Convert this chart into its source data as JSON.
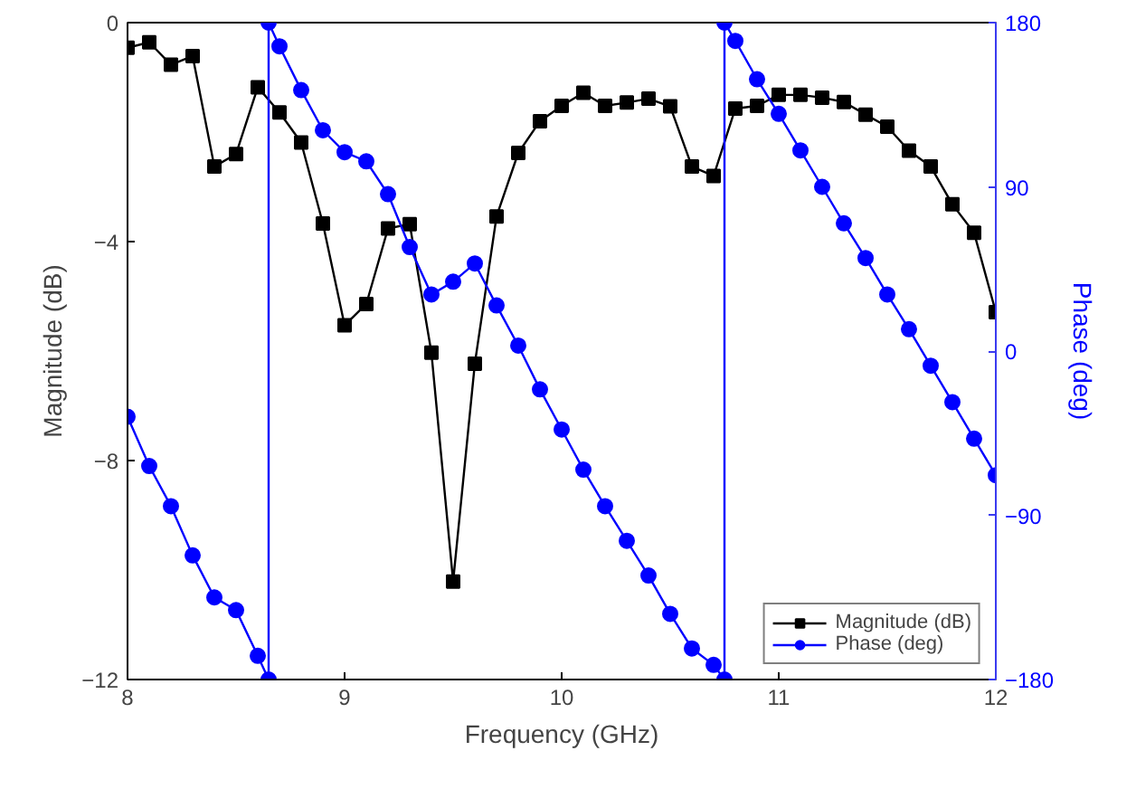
{
  "chart_data": {
    "type": "line",
    "xlabel": "Frequency (GHz)",
    "ylabel": "Magnitude (dB)",
    "y2label": "Phase (deg)",
    "xlim": [
      8,
      12
    ],
    "xticks": [
      8,
      9,
      10,
      11,
      12
    ],
    "ylim": [
      -12,
      0
    ],
    "yticks": [
      -12,
      -8,
      -4,
      0
    ],
    "y2lim": [
      -180,
      180
    ],
    "y2ticks": [
      -180,
      -90,
      0,
      90,
      180
    ],
    "grid": false,
    "legend": "bottom right",
    "series": [
      {
        "name": "Magnitude (dB)",
        "color": "#000000",
        "marker": "square",
        "x": [
          8.0,
          8.1,
          8.2,
          8.3,
          8.4,
          8.5,
          8.6,
          8.7,
          8.8,
          8.9,
          9.0,
          9.1,
          9.2,
          9.3,
          9.4,
          9.5,
          9.6,
          9.7,
          9.8,
          9.9,
          10.0,
          10.1,
          10.2,
          10.3,
          10.4,
          10.5,
          10.6,
          10.7,
          10.8,
          10.9,
          11.0,
          11.1,
          11.2,
          11.3,
          11.4,
          11.5,
          11.6,
          11.7,
          11.8,
          11.9,
          12.0
        ],
        "values": [
          -0.46,
          -0.36,
          -0.77,
          -0.61,
          -2.63,
          -2.4,
          -1.18,
          -1.64,
          -2.19,
          -3.67,
          -5.53,
          -5.14,
          -3.76,
          -3.68,
          -6.03,
          -10.21,
          -6.23,
          -3.54,
          -2.38,
          -1.8,
          -1.52,
          -1.28,
          -1.52,
          -1.46,
          -1.39,
          -1.53,
          -2.63,
          -2.8,
          -1.57,
          -1.52,
          -1.32,
          -1.32,
          -1.37,
          -1.45,
          -1.68,
          -1.9,
          -2.34,
          -2.63,
          -3.32,
          -3.84,
          -5.29
        ]
      },
      {
        "name": "Phase (deg)",
        "color": "#0000ff",
        "marker": "circle",
        "axis": "y2",
        "x": [
          8.0,
          8.1,
          8.2,
          8.3,
          8.4,
          8.5,
          8.6,
          8.65,
          8.65,
          8.7,
          8.8,
          8.9,
          9.0,
          9.1,
          9.2,
          9.3,
          9.4,
          9.5,
          9.6,
          9.7,
          9.8,
          9.9,
          10.0,
          10.1,
          10.2,
          10.3,
          10.4,
          10.5,
          10.6,
          10.7,
          10.75,
          10.75,
          10.8,
          10.9,
          11.0,
          11.1,
          11.2,
          11.3,
          11.4,
          11.5,
          11.6,
          11.7,
          11.8,
          11.9,
          12.0
        ],
        "values": [
          -36,
          -63,
          -85,
          -112,
          -135,
          -142,
          -167,
          -180,
          180,
          167,
          143,
          121,
          109,
          104,
          86,
          57,
          31,
          38,
          48,
          25,
          3,
          -21,
          -43,
          -65,
          -85,
          -104,
          -123,
          -144,
          -163,
          -172,
          -180,
          180,
          170,
          149,
          130,
          110,
          90,
          70,
          51,
          31,
          12,
          -8,
          -28,
          -48,
          -68
        ]
      }
    ]
  }
}
